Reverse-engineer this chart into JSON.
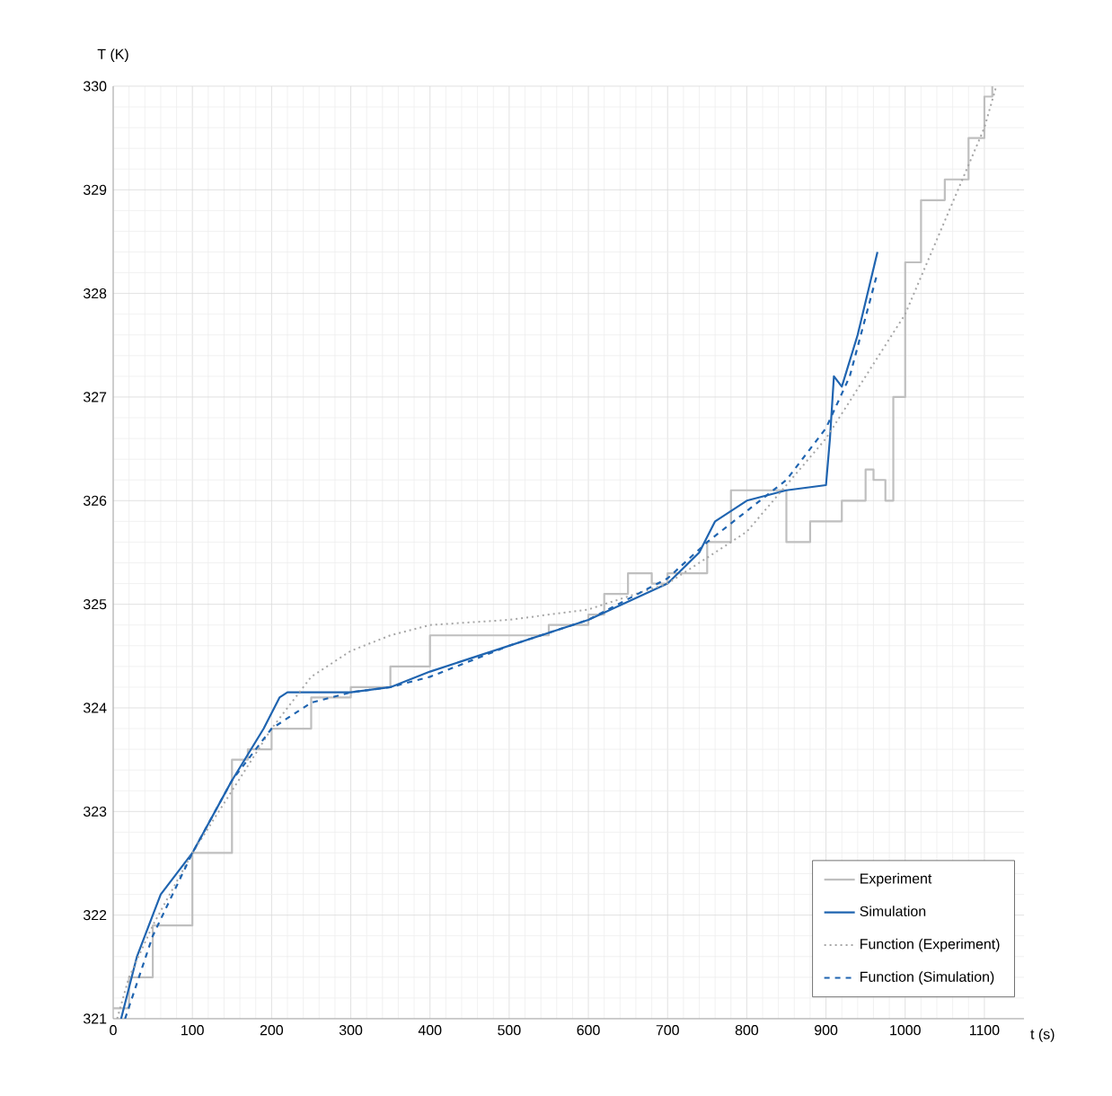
{
  "chart_data": {
    "type": "line",
    "xlabel": "t (s)",
    "ylabel": "T (K)",
    "xlim": [
      0,
      1150
    ],
    "ylim": [
      321,
      330
    ],
    "xticks": [
      0,
      100,
      200,
      300,
      400,
      500,
      600,
      700,
      800,
      900,
      1000,
      1100
    ],
    "yticks": [
      321,
      322,
      323,
      324,
      325,
      326,
      327,
      328,
      329,
      330
    ],
    "grid": true,
    "legend": "bottom right",
    "series": [
      {
        "name": "Experiment",
        "type": "step",
        "color": "#bfbfbf",
        "line_style": "solid",
        "x": [
          0,
          20,
          50,
          100,
          150,
          170,
          200,
          250,
          300,
          350,
          400,
          450,
          500,
          550,
          600,
          620,
          650,
          680,
          700,
          750,
          780,
          820,
          850,
          880,
          920,
          950,
          960,
          975,
          985,
          1000,
          1020,
          1050,
          1080,
          1100,
          1110
        ],
        "values": [
          321.1,
          321.4,
          321.9,
          322.6,
          323.5,
          323.6,
          323.8,
          324.1,
          324.2,
          324.4,
          324.7,
          324.7,
          324.7,
          324.8,
          324.9,
          325.1,
          325.3,
          325.2,
          325.3,
          325.6,
          326.1,
          326.1,
          325.6,
          325.8,
          326.0,
          326.3,
          326.2,
          326.0,
          327.0,
          328.3,
          328.9,
          329.1,
          329.5,
          329.9,
          330.0
        ]
      },
      {
        "name": "Simulation",
        "color": "#1f64b0",
        "line_style": "solid",
        "x": [
          10,
          30,
          60,
          100,
          150,
          190,
          210,
          220,
          300,
          350,
          400,
          500,
          600,
          700,
          740,
          760,
          800,
          850,
          900,
          905,
          910,
          920,
          940,
          965
        ],
        "values": [
          321.0,
          321.6,
          322.2,
          322.6,
          323.3,
          323.8,
          324.1,
          324.15,
          324.15,
          324.2,
          324.35,
          324.6,
          324.85,
          325.2,
          325.5,
          325.8,
          326.0,
          326.1,
          326.15,
          326.6,
          327.2,
          327.1,
          327.6,
          328.4
        ]
      },
      {
        "name": "Function (Experiment)",
        "color": "#a6a6a6",
        "line_style": "dotted",
        "x": [
          5,
          20,
          50,
          100,
          150,
          200,
          250,
          300,
          350,
          400,
          500,
          600,
          700,
          800,
          900,
          1000,
          1100,
          1115
        ],
        "values": [
          321.0,
          321.4,
          321.9,
          322.6,
          323.2,
          323.8,
          324.3,
          324.55,
          324.7,
          324.8,
          324.85,
          324.95,
          325.2,
          325.7,
          326.6,
          327.8,
          329.6,
          330.0
        ]
      },
      {
        "name": "Function (Simulation)",
        "color": "#1f64b0",
        "line_style": "dashed",
        "x": [
          15,
          50,
          100,
          150,
          200,
          250,
          300,
          350,
          400,
          500,
          600,
          700,
          750,
          800,
          850,
          900,
          930,
          965
        ],
        "values": [
          321.0,
          321.8,
          322.6,
          323.3,
          323.8,
          324.05,
          324.15,
          324.2,
          324.3,
          324.6,
          324.85,
          325.25,
          325.6,
          325.9,
          326.2,
          326.7,
          327.2,
          328.2
        ]
      }
    ]
  }
}
